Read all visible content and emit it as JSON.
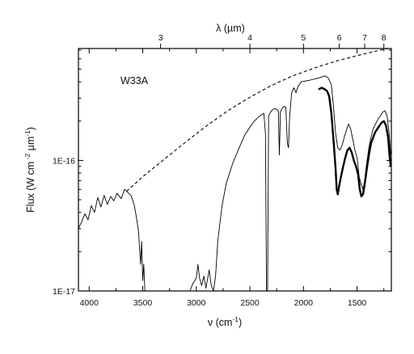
{
  "chart_data": {
    "type": "line",
    "title": "",
    "annotation": "W33A",
    "xlabel_main": "ν (cm",
    "xlabel_sup": "-1",
    "xlabel_close": ")",
    "top_xlabel": "λ (µm)",
    "ylabel_parts": {
      "lead": "Flux (W cm",
      "sup1": " -2",
      "mid": " µm",
      "sup2": "-1",
      "close": ")"
    },
    "x_axis": {
      "reversed": true,
      "range": [
        4100,
        1180
      ],
      "ticks": [
        4000,
        3500,
        3000,
        2500,
        2000,
        1500
      ],
      "tick_labels": [
        "4000",
        "3500",
        "3000",
        "2500",
        "2000",
        "1500"
      ]
    },
    "top_axis": {
      "ticks_um": [
        3,
        4,
        5,
        6,
        7,
        8
      ],
      "tick_labels": [
        "3",
        "4",
        "5",
        "6",
        "7",
        "8"
      ]
    },
    "y_axis": {
      "scale": "log",
      "range": [
        1e-17,
        7.2e-16
      ],
      "labeled_ticks": [
        1e-17,
        1e-16
      ],
      "tick_labels": [
        "1E-17",
        "1E-16"
      ]
    },
    "grid": false,
    "series": [
      {
        "style": "dashed",
        "points": [
          [
            3650,
            5.8e-17
          ],
          [
            3500,
            7.5e-17
          ],
          [
            3300,
            1.02e-16
          ],
          [
            3100,
            1.38e-16
          ],
          [
            2900,
            1.85e-16
          ],
          [
            2700,
            2.42e-16
          ],
          [
            2500,
            3.05e-16
          ],
          [
            2300,
            3.75e-16
          ],
          [
            2100,
            4.45e-16
          ],
          [
            1900,
            5.1e-16
          ],
          [
            1700,
            5.75e-16
          ],
          [
            1500,
            6.35e-16
          ],
          [
            1350,
            6.8e-16
          ],
          [
            1180,
            7.3e-16
          ]
        ]
      },
      {
        "style": "thin-solid",
        "points": [
          [
            4100,
            3e-17
          ],
          [
            4070,
            3.4e-17
          ],
          [
            4040,
            3.9e-17
          ],
          [
            4010,
            3.5e-17
          ],
          [
            3980,
            4.5e-17
          ],
          [
            3950,
            4e-17
          ],
          [
            3920,
            5.2e-17
          ],
          [
            3890,
            4.4e-17
          ],
          [
            3860,
            5.4e-17
          ],
          [
            3830,
            4.6e-17
          ],
          [
            3800,
            5.3e-17
          ],
          [
            3770,
            4.9e-17
          ],
          [
            3740,
            5.6e-17
          ],
          [
            3700,
            5.1e-17
          ],
          [
            3670,
            6e-17
          ],
          [
            3640,
            5.7e-17
          ],
          [
            3610,
            5.4e-17
          ],
          [
            3580,
            4.6e-17
          ],
          [
            3560,
            3.7e-17
          ],
          [
            3540,
            2.9e-17
          ],
          [
            3520,
            1.6e-17
          ],
          [
            3510,
            2.4e-17
          ],
          [
            3500,
            1.2e-17
          ],
          [
            3490,
            1.6e-17
          ],
          [
            3480,
            1e-17
          ]
        ]
      },
      {
        "style": "thin-solid",
        "points": [
          [
            3060,
            1e-17
          ],
          [
            3030,
            1.15e-17
          ],
          [
            3000,
            1.25e-17
          ],
          [
            2985,
            1.6e-17
          ],
          [
            2970,
            1.25e-17
          ],
          [
            2950,
            1.1e-17
          ],
          [
            2930,
            1.3e-17
          ],
          [
            2910,
            1.05e-17
          ],
          [
            2880,
            1.45e-17
          ],
          [
            2860,
            1.1e-17
          ],
          [
            2840,
            1e-17
          ],
          [
            2820,
            1.3e-17
          ],
          [
            2800,
            2.4e-17
          ],
          [
            2760,
            4.5e-17
          ],
          [
            2720,
            6.7e-17
          ],
          [
            2660,
            9.5e-17
          ],
          [
            2600,
            1.25e-16
          ],
          [
            2550,
            1.55e-16
          ],
          [
            2500,
            1.8e-16
          ],
          [
            2460,
            2e-16
          ],
          [
            2420,
            2.15e-16
          ],
          [
            2390,
            2.25e-16
          ],
          [
            2370,
            2.3e-16
          ],
          [
            2355,
            1.6e-16
          ],
          [
            2345,
            1e-17
          ],
          [
            2335,
            1e-17
          ],
          [
            2325,
            2.2e-16
          ],
          [
            2300,
            2.4e-16
          ],
          [
            2270,
            2.5e-16
          ],
          [
            2250,
            2.45e-16
          ],
          [
            2235,
            2.4e-16
          ],
          [
            2225,
            1.1e-16
          ],
          [
            2215,
            2.35e-16
          ],
          [
            2200,
            2.5e-16
          ],
          [
            2180,
            2.6e-16
          ],
          [
            2165,
            2.55e-16
          ],
          [
            2150,
            1.35e-16
          ],
          [
            2140,
            1.25e-16
          ],
          [
            2130,
            2.1e-16
          ],
          [
            2110,
            3.3e-16
          ],
          [
            2090,
            3.6e-16
          ],
          [
            2070,
            3.3e-16
          ],
          [
            2050,
            3.7e-16
          ],
          [
            2020,
            4e-16
          ],
          [
            1990,
            4.05e-16
          ],
          [
            1950,
            4.1e-16
          ],
          [
            1900,
            4.2e-16
          ],
          [
            1850,
            4.3e-16
          ],
          [
            1800,
            4.45e-16
          ],
          [
            1770,
            4.3e-16
          ],
          [
            1740,
            3.8e-16
          ],
          [
            1720,
            2.6e-16
          ],
          [
            1700,
            1.6e-16
          ],
          [
            1680,
            1.25e-16
          ],
          [
            1660,
            1.2e-16
          ],
          [
            1640,
            1.3e-16
          ],
          [
            1620,
            1.5e-16
          ],
          [
            1600,
            1.7e-16
          ],
          [
            1580,
            1.9e-16
          ],
          [
            1560,
            1.75e-16
          ],
          [
            1540,
            1.45e-16
          ],
          [
            1520,
            1.2e-16
          ],
          [
            1500,
            1.05e-16
          ],
          [
            1480,
            7.5e-17
          ],
          [
            1460,
            6.5e-17
          ],
          [
            1445,
            6e-17
          ],
          [
            1430,
            7e-17
          ],
          [
            1410,
            9.5e-17
          ],
          [
            1390,
            1.25e-16
          ],
          [
            1370,
            1.5e-16
          ],
          [
            1350,
            1.75e-16
          ],
          [
            1320,
            1.95e-16
          ],
          [
            1300,
            2.1e-16
          ],
          [
            1280,
            2.2e-16
          ],
          [
            1260,
            2.35e-16
          ],
          [
            1240,
            2.4e-16
          ],
          [
            1220,
            2.2e-16
          ],
          [
            1200,
            1.6e-16
          ],
          [
            1185,
            1.1e-16
          ]
        ]
      },
      {
        "style": "thick-solid",
        "points": [
          [
            1860,
            3.5e-16
          ],
          [
            1830,
            3.6e-16
          ],
          [
            1800,
            3.5e-16
          ],
          [
            1780,
            3.4e-16
          ],
          [
            1760,
            3.1e-16
          ],
          [
            1740,
            2.3e-16
          ],
          [
            1720,
            1.45e-16
          ],
          [
            1700,
            8.5e-17
          ],
          [
            1690,
            6e-17
          ],
          [
            1680,
            5.5e-17
          ],
          [
            1665,
            6.5e-17
          ],
          [
            1650,
            7.5e-17
          ],
          [
            1630,
            9e-17
          ],
          [
            1610,
            1.05e-16
          ],
          [
            1590,
            1.2e-16
          ],
          [
            1570,
            1.25e-16
          ],
          [
            1550,
            1.15e-16
          ],
          [
            1530,
            1e-16
          ],
          [
            1510,
            9e-17
          ],
          [
            1490,
            7.8e-17
          ],
          [
            1475,
            6e-17
          ],
          [
            1460,
            5.3e-17
          ],
          [
            1445,
            5.5e-17
          ],
          [
            1430,
            6.5e-17
          ],
          [
            1410,
            8.5e-17
          ],
          [
            1390,
            1.1e-16
          ],
          [
            1370,
            1.35e-16
          ],
          [
            1350,
            1.5e-16
          ],
          [
            1330,
            1.65e-16
          ],
          [
            1310,
            1.75e-16
          ],
          [
            1290,
            1.85e-16
          ],
          [
            1270,
            1.95e-16
          ],
          [
            1250,
            2e-16
          ],
          [
            1230,
            1.85e-16
          ],
          [
            1210,
            1.5e-16
          ],
          [
            1195,
            1.05e-16
          ],
          [
            1185,
            9e-17
          ]
        ]
      }
    ]
  }
}
